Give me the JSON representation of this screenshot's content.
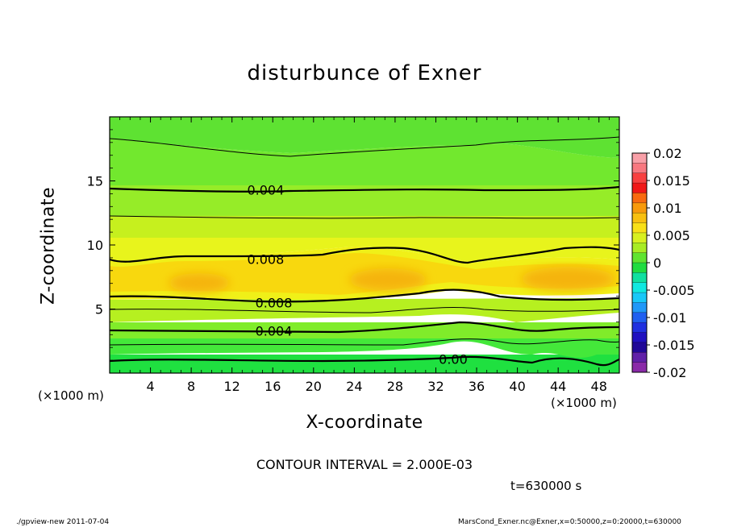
{
  "chart_data": {
    "type": "heatmap",
    "subtype": "filled-contour",
    "title": "disturbunce of Exner",
    "xlabel": "X-coordinate",
    "ylabel": "Z-coordinate",
    "x_unit_label": "(×1000 m)",
    "x_ticks": [
      4,
      8,
      12,
      16,
      20,
      24,
      28,
      32,
      36,
      40,
      44,
      48
    ],
    "y_ticks": [
      5,
      10,
      15
    ],
    "xlim": [
      0,
      50
    ],
    "ylim": [
      0,
      20
    ],
    "colorbar": {
      "ticks": [
        "0.02",
        "0.015",
        "0.01",
        "0.005",
        "0",
        "-0.005",
        "-0.01",
        "-0.015",
        "-0.02"
      ],
      "range": [
        -0.02,
        0.02
      ]
    },
    "contour_labels": [
      {
        "text": "0.004",
        "x": 15.3,
        "z": 14.3
      },
      {
        "text": "0.008",
        "x": 15.3,
        "z": 8.9
      },
      {
        "text": "0.008",
        "x": 16.1,
        "z": 5.5
      },
      {
        "text": "0.004",
        "x": 16.1,
        "z": 3.3
      },
      {
        "text": "0.00",
        "x": 33.7,
        "z": 1.1
      }
    ],
    "contour_interval_text": "CONTOUR INTERVAL = 2.000E-03",
    "time_text": "t=630000 s"
  },
  "footer": {
    "left": "./gpview-new   2011-07-04",
    "right": "MarsCond_Exner.nc@Exner,x=0:50000,z=0:20000,t=630000"
  }
}
